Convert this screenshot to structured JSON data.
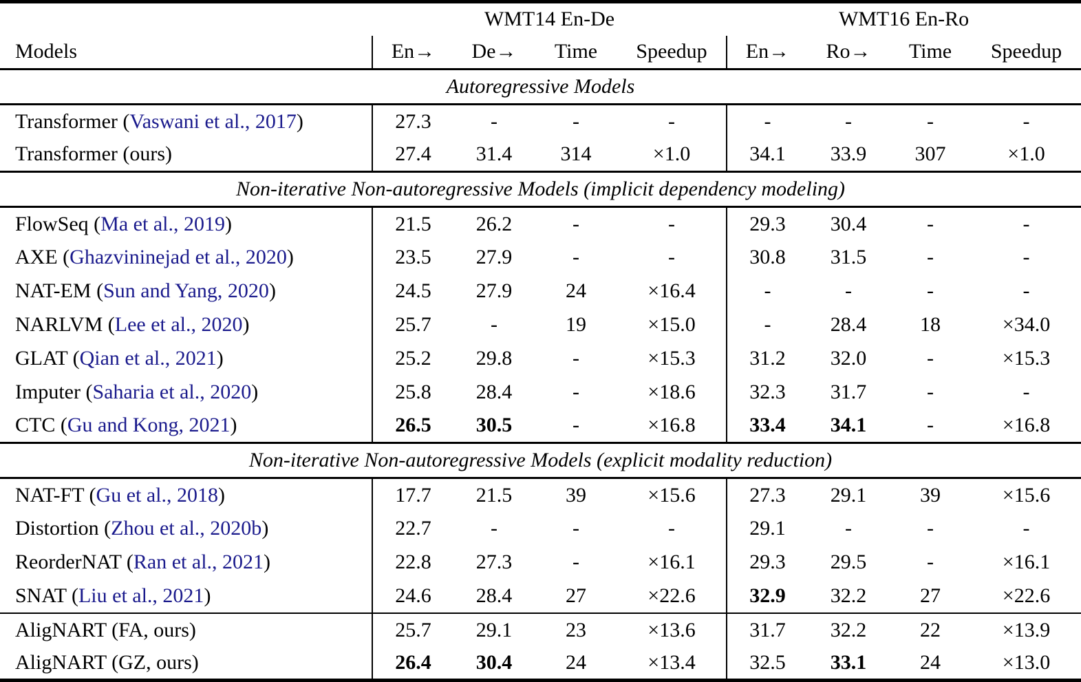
{
  "colors": {
    "text": "#000000",
    "citation_link": "#1a1a8c",
    "background": "#ffffff"
  },
  "table": {
    "models_header": "Models",
    "groups": [
      {
        "title": "WMT14 En-De",
        "cols": [
          "En→",
          "De→",
          "Time",
          "Speedup"
        ]
      },
      {
        "title": "WMT16 En-Ro",
        "cols": [
          "En→",
          "Ro→",
          "Time",
          "Speedup"
        ]
      }
    ],
    "sections": [
      {
        "title": "Autoregressive Models",
        "rows": [
          {
            "pre": "Transformer (",
            "cite": "Vaswani et al., 2017",
            "post": ")",
            "g1": [
              "27.3",
              "-",
              "-",
              "-"
            ],
            "g2": [
              "-",
              "-",
              "-",
              "-"
            ],
            "g1_bold": [],
            "g2_bold": []
          },
          {
            "pre": "Transformer (ours)",
            "cite": "",
            "post": "",
            "g1": [
              "27.4",
              "31.4",
              "314",
              "×1.0"
            ],
            "g2": [
              "34.1",
              "33.9",
              "307",
              "×1.0"
            ],
            "g1_bold": [],
            "g2_bold": []
          }
        ]
      },
      {
        "title": "Non-iterative Non-autoregressive Models (implicit dependency modeling)",
        "rows": [
          {
            "pre": "FlowSeq (",
            "cite": "Ma et al., 2019",
            "post": ")",
            "g1": [
              "21.5",
              "26.2",
              "-",
              "-"
            ],
            "g2": [
              "29.3",
              "30.4",
              "-",
              "-"
            ],
            "g1_bold": [],
            "g2_bold": []
          },
          {
            "pre": "AXE (",
            "cite": "Ghazvininejad et al., 2020",
            "post": ")",
            "g1": [
              "23.5",
              "27.9",
              "-",
              "-"
            ],
            "g2": [
              "30.8",
              "31.5",
              "-",
              "-"
            ],
            "g1_bold": [],
            "g2_bold": []
          },
          {
            "pre": "NAT-EM (",
            "cite": "Sun and Yang, 2020",
            "post": ")",
            "g1": [
              "24.5",
              "27.9",
              "24",
              "×16.4"
            ],
            "g2": [
              "-",
              "-",
              "-",
              "-"
            ],
            "g1_bold": [],
            "g2_bold": []
          },
          {
            "pre": "NARLVM (",
            "cite": "Lee et al., 2020",
            "post": ")",
            "g1": [
              "25.7",
              "-",
              "19",
              "×15.0"
            ],
            "g2": [
              "-",
              "28.4",
              "18",
              "×34.0"
            ],
            "g1_bold": [],
            "g2_bold": []
          },
          {
            "pre": "GLAT (",
            "cite": "Qian et al., 2021",
            "post": ")",
            "g1": [
              "25.2",
              "29.8",
              "-",
              "×15.3"
            ],
            "g2": [
              "31.2",
              "32.0",
              "-",
              "×15.3"
            ],
            "g1_bold": [],
            "g2_bold": []
          },
          {
            "pre": "Imputer (",
            "cite": "Saharia et al., 2020",
            "post": ")",
            "g1": [
              "25.8",
              "28.4",
              "-",
              "×18.6"
            ],
            "g2": [
              "32.3",
              "31.7",
              "-",
              "-"
            ],
            "g1_bold": [],
            "g2_bold": []
          },
          {
            "pre": "CTC (",
            "cite": "Gu and Kong, 2021",
            "post": ")",
            "g1": [
              "26.5",
              "30.5",
              "-",
              "×16.8"
            ],
            "g2": [
              "33.4",
              "34.1",
              "-",
              "×16.8"
            ],
            "g1_bold": [
              0,
              1
            ],
            "g2_bold": [
              0,
              1
            ]
          }
        ]
      },
      {
        "title": "Non-iterative Non-autoregressive Models (explicit modality reduction)",
        "rows": [
          {
            "pre": "NAT-FT (",
            "cite": "Gu et al., 2018",
            "post": ")",
            "g1": [
              "17.7",
              "21.5",
              "39",
              "×15.6"
            ],
            "g2": [
              "27.3",
              "29.1",
              "39",
              "×15.6"
            ],
            "g1_bold": [],
            "g2_bold": []
          },
          {
            "pre": "Distortion (",
            "cite": "Zhou et al., 2020b",
            "post": ")",
            "g1": [
              "22.7",
              "-",
              "-",
              "-"
            ],
            "g2": [
              "29.1",
              "-",
              "-",
              "-"
            ],
            "g1_bold": [],
            "g2_bold": []
          },
          {
            "pre": "ReorderNAT (",
            "cite": "Ran et al., 2021",
            "post": ")",
            "g1": [
              "22.8",
              "27.3",
              "-",
              "×16.1"
            ],
            "g2": [
              "29.3",
              "29.5",
              "-",
              "×16.1"
            ],
            "g1_bold": [],
            "g2_bold": []
          },
          {
            "pre": "SNAT (",
            "cite": "Liu et al., 2021",
            "post": ")",
            "g1": [
              "24.6",
              "28.4",
              "27",
              "×22.6"
            ],
            "g2": [
              "32.9",
              "32.2",
              "27",
              "×22.6"
            ],
            "g1_bold": [],
            "g2_bold": [
              0
            ]
          },
          {
            "pre": "AligNART (FA, ours)",
            "cite": "",
            "post": "",
            "rule_before": true,
            "g1": [
              "25.7",
              "29.1",
              "23",
              "×13.6"
            ],
            "g2": [
              "31.7",
              "32.2",
              "22",
              "×13.9"
            ],
            "g1_bold": [],
            "g2_bold": []
          },
          {
            "pre": "AligNART (GZ, ours)",
            "cite": "",
            "post": "",
            "g1": [
              "26.4",
              "30.4",
              "24",
              "×13.4"
            ],
            "g2": [
              "32.5",
              "33.1",
              "24",
              "×13.0"
            ],
            "g1_bold": [
              0,
              1
            ],
            "g2_bold": [
              1
            ]
          }
        ]
      }
    ]
  }
}
